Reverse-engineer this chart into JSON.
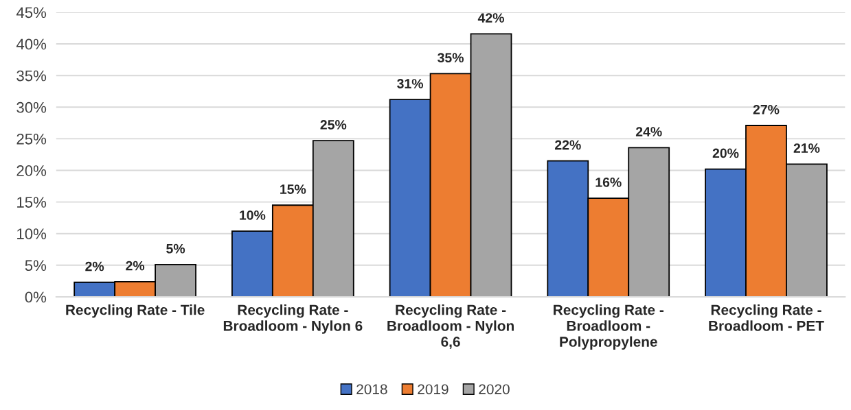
{
  "chart_data": {
    "type": "bar",
    "categories": [
      "Recycling Rate - Tile",
      "Recycling Rate - Broadloom - Nylon 6",
      "Recycling Rate - Broadloom - Nylon 6,6",
      "Recycling Rate - Broadloom - Polypropylene",
      "Recycling Rate - Broadloom - PET"
    ],
    "series": [
      {
        "name": "2018",
        "color": "#4472c4",
        "values": [
          2.3,
          10.4,
          31.2,
          21.5,
          20.2
        ],
        "value_labels": [
          "2%",
          "10%",
          "31%",
          "22%",
          "20%"
        ]
      },
      {
        "name": "2019",
        "color": "#ed7d31",
        "values": [
          2.4,
          14.5,
          35.3,
          15.6,
          27.1
        ],
        "value_labels": [
          "2%",
          "15%",
          "35%",
          "16%",
          "27%"
        ]
      },
      {
        "name": "2020",
        "color": "#a5a5a5",
        "values": [
          5.1,
          24.7,
          41.6,
          23.6,
          21.0
        ],
        "value_labels": [
          "5%",
          "25%",
          "42%",
          "24%",
          "21%"
        ]
      }
    ],
    "ylim": [
      0,
      45
    ],
    "yticks": [
      {
        "value": 0,
        "label": "0%"
      },
      {
        "value": 5,
        "label": "5%"
      },
      {
        "value": 10,
        "label": "10%"
      },
      {
        "value": 15,
        "label": "15%"
      },
      {
        "value": 20,
        "label": "20%"
      },
      {
        "value": 25,
        "label": "25%"
      },
      {
        "value": 30,
        "label": "30%"
      },
      {
        "value": 35,
        "label": "35%"
      },
      {
        "value": 40,
        "label": "40%"
      },
      {
        "value": 45,
        "label": "45%"
      }
    ],
    "grid": "y",
    "legend": "bottom"
  }
}
